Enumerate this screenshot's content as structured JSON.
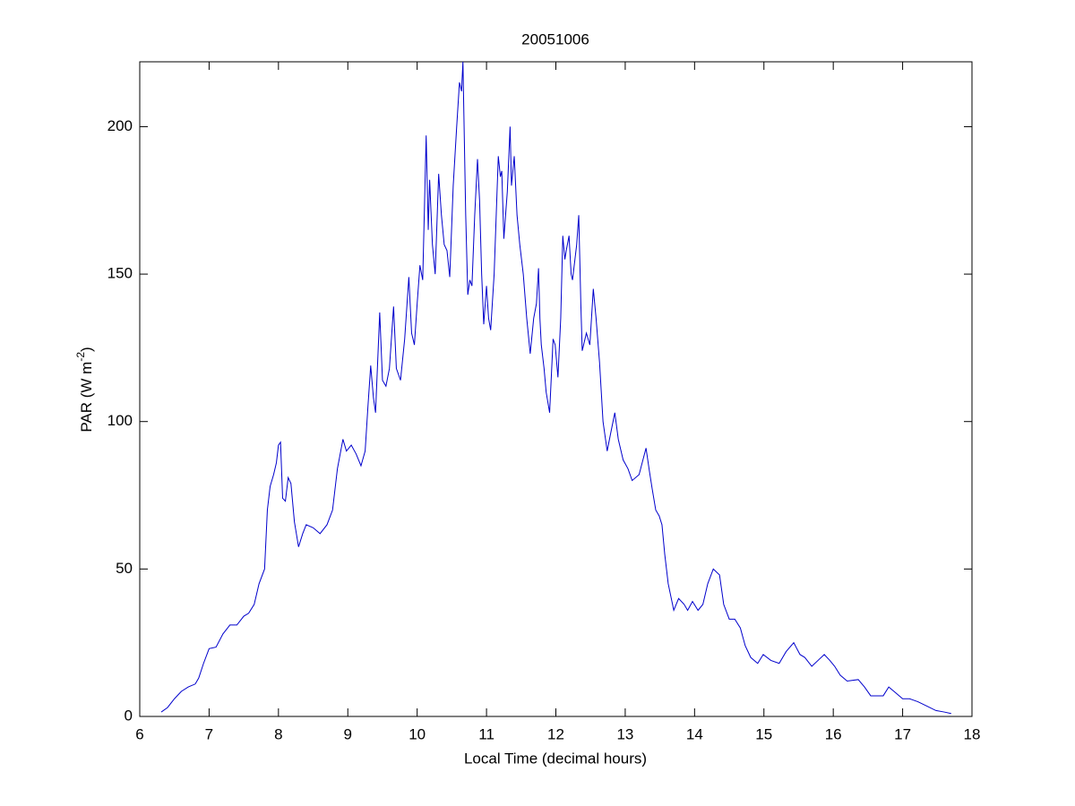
{
  "chart_data": {
    "type": "line",
    "title": "20051006",
    "xlabel": "Local Time (decimal hours)",
    "ylabel": {
      "text": "PAR (W m",
      "superscript": "-2",
      "suffix": ")"
    },
    "xlim": [
      6,
      18
    ],
    "xticks": [
      6,
      7,
      8,
      9,
      10,
      11,
      12,
      13,
      14,
      15,
      16,
      17,
      18
    ],
    "ylim": [
      0,
      222
    ],
    "yticks": [
      0,
      50,
      100,
      150,
      200
    ],
    "grid": false,
    "series": [
      {
        "color": "#0000cc",
        "x": [
          6.31,
          6.4,
          6.5,
          6.6,
          6.7,
          6.8,
          6.85,
          6.92,
          7.0,
          7.1,
          7.2,
          7.3,
          7.4,
          7.5,
          7.57,
          7.65,
          7.72,
          7.8,
          7.84,
          7.88,
          7.93,
          7.97,
          8.0,
          8.03,
          8.06,
          8.1,
          8.14,
          8.18,
          8.23,
          8.29,
          8.35,
          8.4,
          8.5,
          8.6,
          8.7,
          8.78,
          8.85,
          8.93,
          8.98,
          9.05,
          9.12,
          9.19,
          9.25,
          9.29,
          9.33,
          9.37,
          9.4,
          9.46,
          9.5,
          9.55,
          9.6,
          9.66,
          9.7,
          9.76,
          9.82,
          9.88,
          9.92,
          9.96,
          10.0,
          10.04,
          10.08,
          10.13,
          10.16,
          10.18,
          10.22,
          10.26,
          10.31,
          10.35,
          10.39,
          10.43,
          10.47,
          10.52,
          10.57,
          10.61,
          10.64,
          10.66,
          10.7,
          10.73,
          10.76,
          10.79,
          10.83,
          10.87,
          10.9,
          10.93,
          10.96,
          11.0,
          11.03,
          11.06,
          11.11,
          11.17,
          11.2,
          11.22,
          11.25,
          11.3,
          11.34,
          11.36,
          11.4,
          11.44,
          11.48,
          11.53,
          11.58,
          11.63,
          11.68,
          11.72,
          11.75,
          11.77,
          11.79,
          11.83,
          11.86,
          11.91,
          11.96,
          11.99,
          12.03,
          12.07,
          12.1,
          12.13,
          12.15,
          12.19,
          12.22,
          12.24,
          12.3,
          12.33,
          12.36,
          12.38,
          12.44,
          12.49,
          12.54,
          12.58,
          12.63,
          12.68,
          12.74,
          12.79,
          12.85,
          12.9,
          12.97,
          13.04,
          13.1,
          13.2,
          13.3,
          13.35,
          13.39,
          13.44,
          13.49,
          13.53,
          13.57,
          13.62,
          13.7,
          13.77,
          13.85,
          13.9,
          13.97,
          14.05,
          14.12,
          14.19,
          14.27,
          14.36,
          14.42,
          14.5,
          14.58,
          14.66,
          14.73,
          14.81,
          14.91,
          14.99,
          15.1,
          15.22,
          15.32,
          15.43,
          15.52,
          15.59,
          15.69,
          15.78,
          15.87,
          15.95,
          16.02,
          16.1,
          16.2,
          16.36,
          16.45,
          16.54,
          16.72,
          16.8,
          16.9,
          17.0,
          17.1,
          17.22,
          17.35,
          17.48,
          17.6,
          17.7
        ],
        "values": [
          1.5,
          3,
          6,
          8.5,
          10,
          11,
          13,
          18,
          23,
          23.5,
          28,
          31,
          31,
          34,
          35,
          38,
          45,
          50,
          70,
          78,
          82,
          86,
          92,
          93,
          74,
          73,
          81,
          79,
          66,
          57.5,
          62,
          65,
          64,
          62,
          65,
          70,
          84,
          94,
          90,
          92,
          89,
          85,
          90,
          105,
          119,
          108,
          103,
          137,
          114,
          112,
          118,
          139,
          118,
          114,
          128,
          149,
          130,
          126,
          140,
          153,
          148,
          197,
          165,
          182,
          160,
          150,
          184,
          170,
          160,
          158,
          149,
          180,
          200,
          215,
          212,
          222,
          170,
          143,
          148,
          146,
          170,
          189,
          175,
          150,
          133,
          146,
          135,
          131,
          150,
          190,
          183,
          185,
          162,
          178,
          200,
          180,
          190,
          170,
          160,
          150,
          135,
          123,
          135,
          140,
          152,
          135,
          126,
          118,
          110,
          103,
          128,
          126,
          115,
          135,
          163,
          155,
          158,
          163,
          150,
          148,
          160,
          170,
          140,
          124,
          130,
          126,
          145,
          135,
          120,
          100,
          90,
          96,
          103,
          94,
          87,
          84,
          80,
          82,
          91,
          83,
          77,
          70,
          68,
          65,
          55,
          45,
          36,
          40,
          38,
          36,
          39,
          36,
          38,
          45,
          50,
          48,
          38,
          33,
          33,
          30,
          24,
          20,
          18,
          21,
          19,
          18,
          22,
          25,
          21,
          20,
          17,
          19,
          21,
          19,
          17,
          14,
          12,
          12.5,
          10,
          7,
          7,
          10,
          8,
          6,
          6,
          5,
          3.5,
          2,
          1.5,
          1
        ]
      }
    ]
  }
}
